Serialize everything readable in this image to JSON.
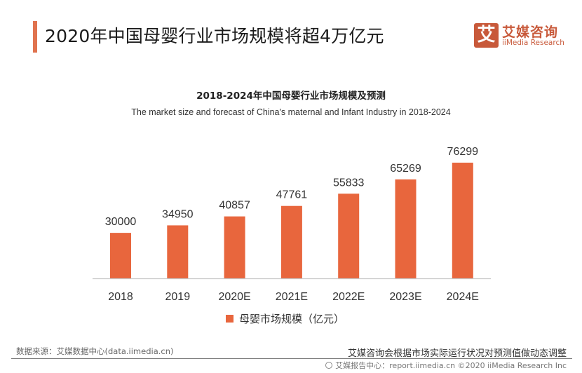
{
  "header": {
    "title": "2020年中国母婴行业市场规模将超4万亿元",
    "accent_color": "#e0734f"
  },
  "logo": {
    "glyph": "艾",
    "name_cn": "艾媒咨询",
    "name_en": "iiMedia Research",
    "color": "#c8593a"
  },
  "chart_data": {
    "type": "bar",
    "title": "2018-2024年中国母婴行业市场规模及预测",
    "subtitle": "The market size and forecast of China's maternal and Infant Industry in 2018-2024",
    "categories": [
      "2018",
      "2019",
      "2020E",
      "2021E",
      "2022E",
      "2023E",
      "2024E"
    ],
    "series": [
      {
        "name": "母婴市场规模（亿元）",
        "values": [
          30000,
          34950,
          40857,
          47761,
          55833,
          65269,
          76299
        ],
        "color": "#e8663d"
      }
    ],
    "xlabel": "",
    "ylabel": "",
    "ylim": [
      0,
      76299
    ],
    "grid": false,
    "legend": "bottom-center",
    "data_labels": true
  },
  "footer": {
    "source": "数据来源：艾媒数据中心(data.iimedia.cn)",
    "disclaimer": "艾媒咨询会根据市场实际运行状况对预测值做动态调整",
    "report_center": "艾媒报告中心：report.iimedia.cn   ©2020  iiMedia Research  Inc",
    "icon": "globe-icon"
  }
}
